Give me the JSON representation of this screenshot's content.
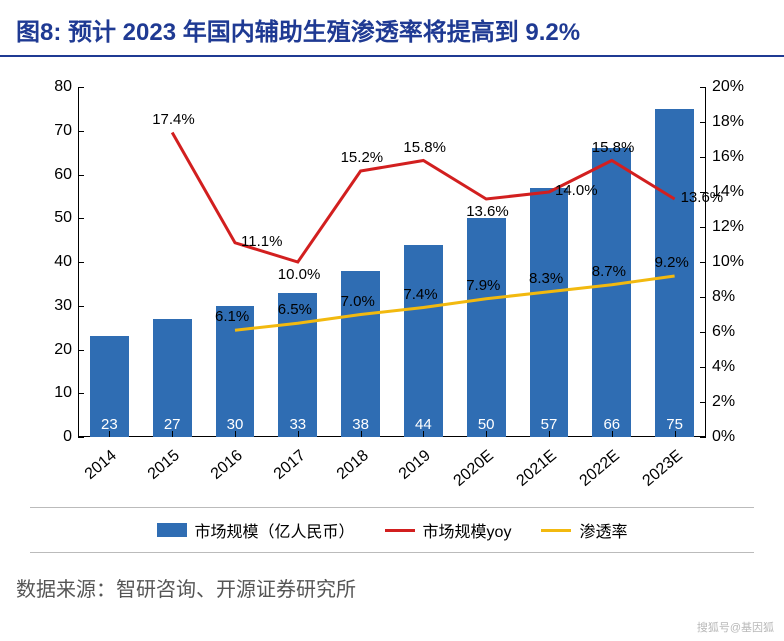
{
  "title": "图8:   预计 2023 年国内辅助生殖渗透率将提高到 9.2%",
  "source": "数据来源：智研咨询、开源证券研究所",
  "watermark": "搜狐号@基因狐",
  "chart": {
    "type": "bar+line",
    "categories": [
      "2014",
      "2015",
      "2016",
      "2017",
      "2018",
      "2019",
      "2020E",
      "2021E",
      "2022E",
      "2023E"
    ],
    "y_left": {
      "min": 0,
      "max": 80,
      "step": 10
    },
    "y_right": {
      "min": 0,
      "max": 20,
      "step": 2,
      "suffix": "%"
    },
    "bars": {
      "values": [
        23,
        27,
        30,
        33,
        38,
        44,
        50,
        57,
        66,
        75
      ],
      "color": "#2f6db3",
      "width_ratio": 0.62,
      "label_color": "#ffffff",
      "label_fontsize": 15
    },
    "line_yoy": {
      "values": [
        null,
        17.4,
        11.1,
        10.0,
        15.2,
        15.8,
        13.6,
        14.0,
        15.8,
        13.6
      ],
      "color": "#d21f1f",
      "width": 3,
      "label_suffix": "%",
      "label_pos": [
        "",
        "above",
        "right",
        "below",
        "above",
        "above",
        "below",
        "right",
        "above",
        "right"
      ]
    },
    "line_penetration": {
      "values": [
        null,
        null,
        6.1,
        6.5,
        7.0,
        7.4,
        7.9,
        8.3,
        8.7,
        9.2
      ],
      "color": "#f2b90f",
      "width": 3,
      "label_suffix": "%",
      "label_pos": [
        "",
        "",
        "above",
        "above",
        "above",
        "above",
        "above",
        "above",
        "above",
        "above"
      ]
    },
    "background_color": "#ffffff",
    "tick_fontsize": 16,
    "title_color": "#1f3a93",
    "title_fontsize": 24
  },
  "legend": {
    "items": [
      {
        "label": "市场规模（亿人民币）",
        "type": "bar",
        "color": "#2f6db3"
      },
      {
        "label": "市场规模yoy",
        "type": "line",
        "color": "#d21f1f"
      },
      {
        "label": "渗透率",
        "type": "line",
        "color": "#f2b90f"
      }
    ]
  }
}
